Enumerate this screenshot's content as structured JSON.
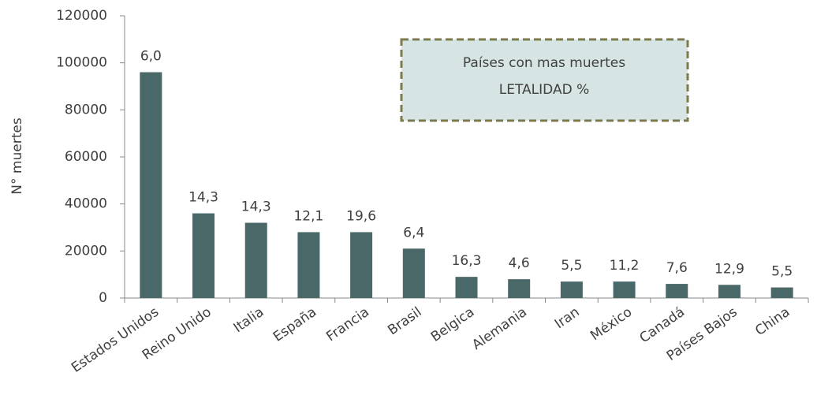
{
  "chart_data": {
    "type": "bar",
    "title": [
      "Países con mas muertes",
      "LETALIDAD %"
    ],
    "y_label": "N° muertes",
    "categories": [
      "Estados Unidos",
      "Reino Unido",
      "Italia",
      "España",
      "Francia",
      "Brasil",
      "Belgica",
      "Alemania",
      "Iran",
      "México",
      "Canadá",
      "Países Bajos",
      "China"
    ],
    "values": [
      96000,
      36000,
      32000,
      28000,
      28000,
      21000,
      9000,
      8000,
      7000,
      7000,
      6000,
      5600,
      4500
    ],
    "bar_annotations": [
      "6,0",
      "14,3",
      "14,3",
      "12,1",
      "19,6",
      "6,4",
      "16,3",
      "4,6",
      "5,5",
      "11,2",
      "7,6",
      "12,9",
      "5,5"
    ],
    "color": "#4a6868",
    "ylim": [
      0,
      120000
    ],
    "yticks": [
      0,
      20000,
      40000,
      60000,
      80000,
      100000,
      120000
    ],
    "grid": false
  }
}
